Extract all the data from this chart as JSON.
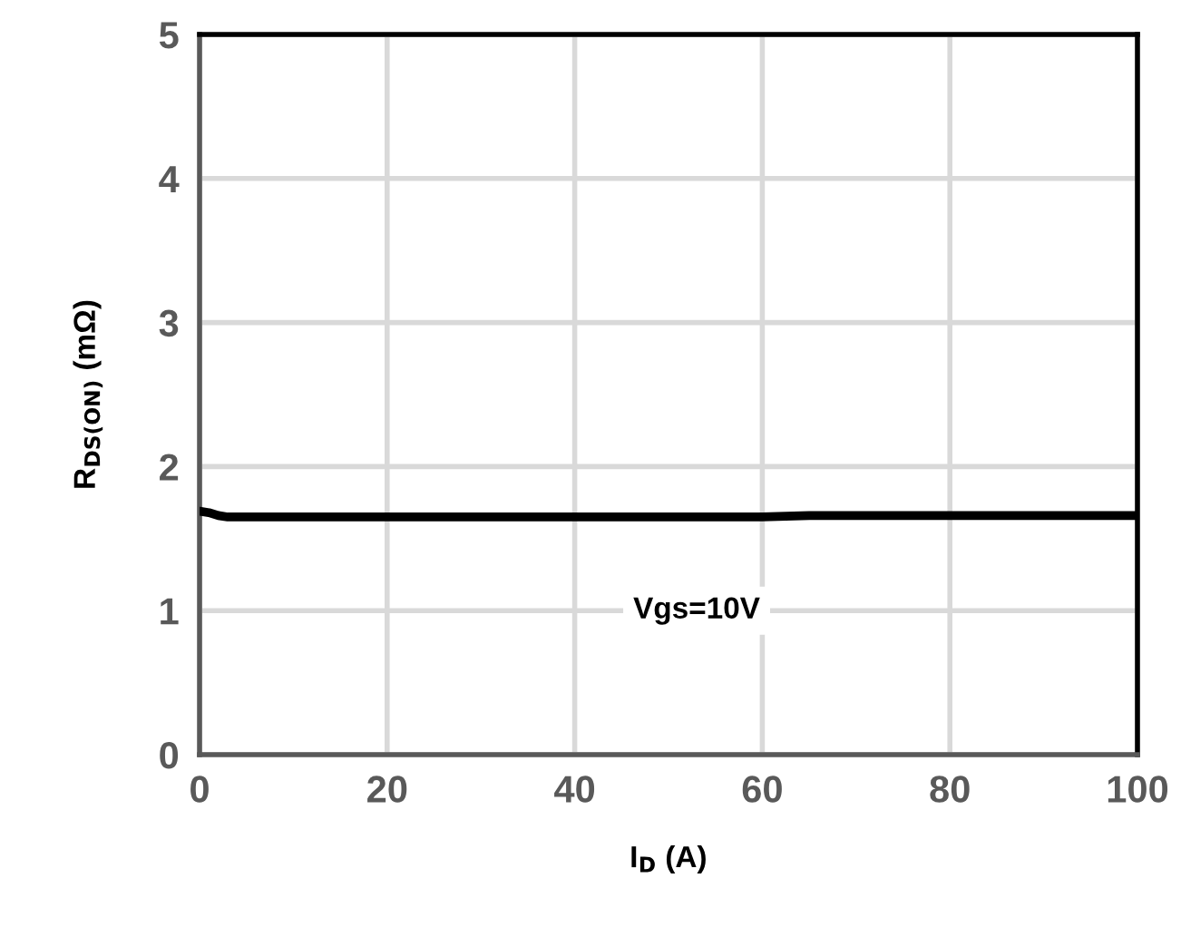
{
  "chart_data": {
    "type": "line",
    "xlabel": "I$_{D}$ (A)",
    "ylabel": "R$_{DS(ON)}$ (mΩ)",
    "x": [
      0,
      1,
      2,
      3,
      5,
      10,
      20,
      40,
      60,
      65,
      80,
      100
    ],
    "series": [
      {
        "color": "#000000",
        "values": [
          1.69,
          1.68,
          1.66,
          1.65,
          1.65,
          1.65,
          1.65,
          1.65,
          1.65,
          1.66,
          1.66,
          1.66
        ]
      }
    ],
    "xlim": [
      0,
      100
    ],
    "xticks": [
      0,
      20,
      40,
      60,
      80,
      100
    ],
    "ylim": [
      0,
      5
    ],
    "yticks": [
      0,
      1,
      2,
      3,
      4,
      5
    ],
    "grid": true,
    "legend": false,
    "marker": "none",
    "line_style": "solid",
    "annotations": [
      "Vgs=10V"
    ]
  }
}
